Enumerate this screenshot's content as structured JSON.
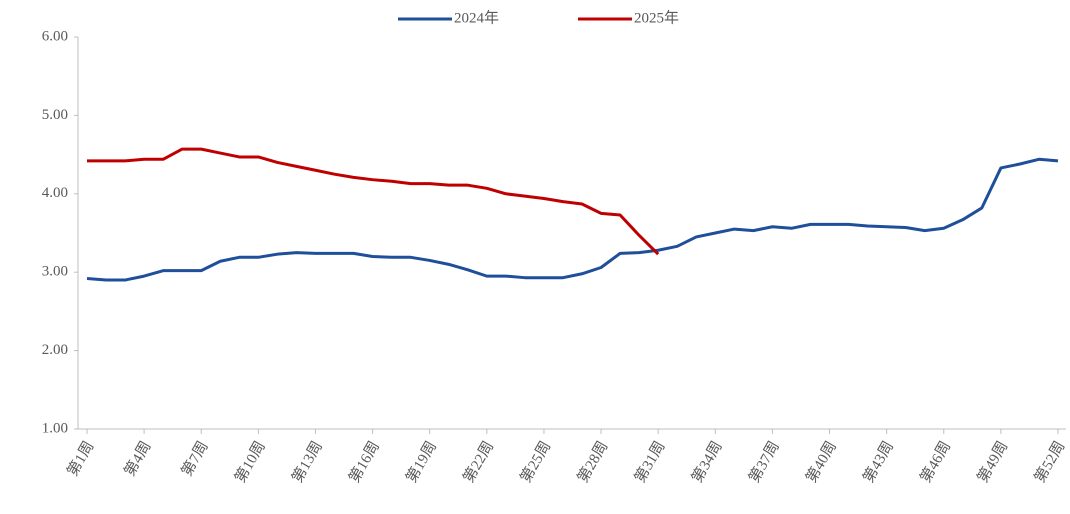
{
  "chart_data": {
    "type": "line",
    "categories": [
      "第1周",
      null,
      null,
      "第4周",
      null,
      null,
      "第7周",
      null,
      null,
      "第10周",
      null,
      null,
      "第13周",
      null,
      null,
      "第16周",
      null,
      null,
      "第19周",
      null,
      null,
      "第22周",
      null,
      null,
      "第25周",
      null,
      null,
      "第28周",
      null,
      null,
      "第31周",
      null,
      null,
      "第34周",
      null,
      null,
      "第37周",
      null,
      null,
      "第40周",
      null,
      null,
      "第43周",
      null,
      null,
      "第46周",
      null,
      null,
      "第49周",
      null,
      null,
      "第52周"
    ],
    "series": [
      {
        "name": "2024年",
        "color": "#1f4e9a",
        "values": [
          2.92,
          2.9,
          2.9,
          2.95,
          3.02,
          3.02,
          3.02,
          3.14,
          3.19,
          3.19,
          3.23,
          3.25,
          3.24,
          3.24,
          3.24,
          3.2,
          3.19,
          3.19,
          3.15,
          3.1,
          3.03,
          2.95,
          2.95,
          2.93,
          2.93,
          2.93,
          2.98,
          3.06,
          3.24,
          3.25,
          3.28,
          3.33,
          3.45,
          3.5,
          3.55,
          3.53,
          3.58,
          3.56,
          3.61,
          3.61,
          3.61,
          3.59,
          3.58,
          3.57,
          3.53,
          3.56,
          3.67,
          3.82,
          4.33,
          4.38,
          4.44,
          4.42
        ]
      },
      {
        "name": "2025年",
        "color": "#c00000",
        "values": [
          4.42,
          4.42,
          4.42,
          4.44,
          4.44,
          4.57,
          4.57,
          4.52,
          4.47,
          4.47,
          4.4,
          4.35,
          4.3,
          4.25,
          4.21,
          4.18,
          4.16,
          4.13,
          4.13,
          4.11,
          4.11,
          4.07,
          4.0,
          3.97,
          3.94,
          3.9,
          3.87,
          3.75,
          3.73,
          3.47,
          3.23,
          null,
          null,
          null,
          null,
          null,
          null,
          null,
          null,
          null,
          null,
          null,
          null,
          null,
          null,
          null,
          null,
          null,
          null,
          null,
          null,
          null
        ]
      }
    ],
    "ylim": [
      1,
      6
    ],
    "yticks": [
      {
        "value": 1,
        "label": "1.00"
      },
      {
        "value": 2,
        "label": "2.00"
      },
      {
        "value": 3,
        "label": "3.00"
      },
      {
        "value": 4,
        "label": "4.00"
      },
      {
        "value": 5,
        "label": "5.00"
      },
      {
        "value": 6,
        "label": "6.00"
      }
    ],
    "grid": false
  }
}
